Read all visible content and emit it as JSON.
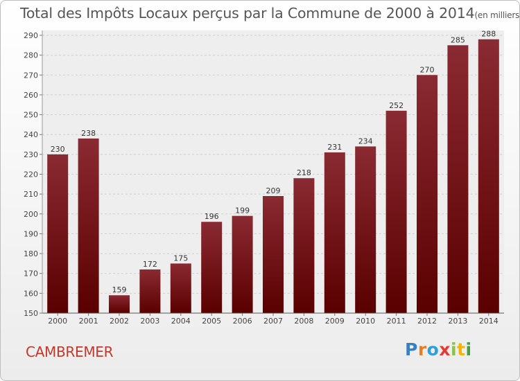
{
  "chart_data": {
    "type": "bar",
    "title": "Total des Impôts Locaux perçus par la Commune de 2000 à 2014",
    "unit": "(en milliers d'€)",
    "categories": [
      "2000",
      "2001",
      "2002",
      "2003",
      "2004",
      "2005",
      "2006",
      "2007",
      "2008",
      "2009",
      "2010",
      "2011",
      "2012",
      "2013",
      "2014"
    ],
    "values": [
      230,
      238,
      159,
      172,
      175,
      196,
      199,
      209,
      218,
      231,
      234,
      252,
      270,
      285,
      288
    ],
    "ylim": [
      150,
      290
    ],
    "yticks": [
      150,
      160,
      170,
      180,
      190,
      200,
      210,
      220,
      230,
      240,
      250,
      260,
      270,
      280,
      290
    ],
    "grid": true,
    "bar_color_top": "#8a2a32",
    "bar_color_bottom": "#5a0000"
  },
  "footer": {
    "commune": "CAMBREMER",
    "logo_text": "Proxiti"
  }
}
